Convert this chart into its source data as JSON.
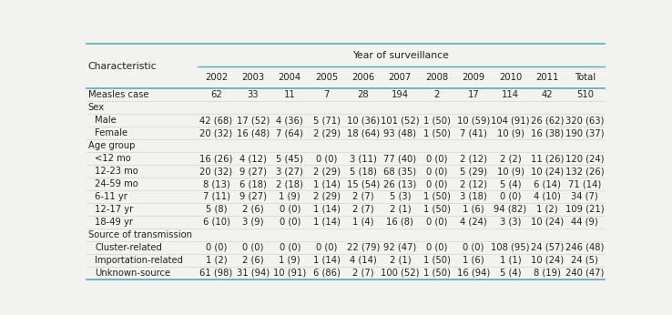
{
  "title": "Year of surveillance",
  "col_headers": [
    "Characteristic",
    "2002",
    "2003",
    "2004",
    "2005",
    "2006",
    "2007",
    "2008",
    "2009",
    "2010",
    "2011",
    "Total"
  ],
  "rows": [
    {
      "label": "Measles case",
      "indent": 0,
      "is_header": false,
      "values": [
        "62",
        "33",
        "11",
        "7",
        "28",
        "194",
        "2",
        "17",
        "114",
        "42",
        "510"
      ]
    },
    {
      "label": "Sex",
      "indent": 0,
      "is_header": true,
      "values": []
    },
    {
      "label": "Male",
      "indent": 1,
      "is_header": false,
      "values": [
        "42 (68)",
        "17 (52)",
        "4 (36)",
        "5 (71)",
        "10 (36)",
        "101 (52)",
        "1 (50)",
        "10 (59)",
        "104 (91)",
        "26 (62)",
        "320 (63)"
      ]
    },
    {
      "label": "Female",
      "indent": 1,
      "is_header": false,
      "values": [
        "20 (32)",
        "16 (48)",
        "7 (64)",
        "2 (29)",
        "18 (64)",
        "93 (48)",
        "1 (50)",
        "7 (41)",
        "10 (9)",
        "16 (38)",
        "190 (37)"
      ]
    },
    {
      "label": "Age group",
      "indent": 0,
      "is_header": true,
      "values": []
    },
    {
      "label": "<12 mo",
      "indent": 1,
      "is_header": false,
      "values": [
        "16 (26)",
        "4 (12)",
        "5 (45)",
        "0 (0)",
        "3 (11)",
        "77 (40)",
        "0 (0)",
        "2 (12)",
        "2 (2)",
        "11 (26)",
        "120 (24)"
      ]
    },
    {
      "label": "12-23 mo",
      "indent": 1,
      "is_header": false,
      "values": [
        "20 (32)",
        "9 (27)",
        "3 (27)",
        "2 (29)",
        "5 (18)",
        "68 (35)",
        "0 (0)",
        "5 (29)",
        "10 (9)",
        "10 (24)",
        "132 (26)"
      ]
    },
    {
      "label": "24-59 mo",
      "indent": 1,
      "is_header": false,
      "values": [
        "8 (13)",
        "6 (18)",
        "2 (18)",
        "1 (14)",
        "15 (54)",
        "26 (13)",
        "0 (0)",
        "2 (12)",
        "5 (4)",
        "6 (14)",
        "71 (14)"
      ]
    },
    {
      "label": "6-11 yr",
      "indent": 1,
      "is_header": false,
      "values": [
        "7 (11)",
        "9 (27)",
        "1 (9)",
        "2 (29)",
        "2 (7)",
        "5 (3)",
        "1 (50)",
        "3 (18)",
        "0 (0)",
        "4 (10)",
        "34 (7)"
      ]
    },
    {
      "label": "12-17 yr",
      "indent": 1,
      "is_header": false,
      "values": [
        "5 (8)",
        "2 (6)",
        "0 (0)",
        "1 (14)",
        "2 (7)",
        "2 (1)",
        "1 (50)",
        "1 (6)",
        "94 (82)",
        "1 (2)",
        "109 (21)"
      ]
    },
    {
      "label": "18-49 yr",
      "indent": 1,
      "is_header": false,
      "values": [
        "6 (10)",
        "3 (9)",
        "0 (0)",
        "1 (14)",
        "1 (4)",
        "16 (8)",
        "0 (0)",
        "4 (24)",
        "3 (3)",
        "10 (24)",
        "44 (9)"
      ]
    },
    {
      "label": "Source of transmission",
      "indent": 0,
      "is_header": true,
      "values": []
    },
    {
      "label": "Cluster-related",
      "indent": 1,
      "is_header": false,
      "values": [
        "0 (0)",
        "0 (0)",
        "0 (0)",
        "0 (0)",
        "22 (79)",
        "92 (47)",
        "0 (0)",
        "0 (0)",
        "108 (95)",
        "24 (57)",
        "246 (48)"
      ]
    },
    {
      "label": "Importation-related",
      "indent": 1,
      "is_header": false,
      "values": [
        "1 (2)",
        "2 (6)",
        "1 (9)",
        "1 (14)",
        "4 (14)",
        "2 (1)",
        "1 (50)",
        "1 (6)",
        "1 (1)",
        "10 (24)",
        "24 (5)"
      ]
    },
    {
      "label": "Unknown-source",
      "indent": 1,
      "is_header": false,
      "values": [
        "61 (98)",
        "31 (94)",
        "10 (91)",
        "6 (86)",
        "2 (7)",
        "100 (52)",
        "1 (50)",
        "16 (94)",
        "5 (4)",
        "8 (19)",
        "240 (47)"
      ]
    }
  ],
  "bg_color": "#f2f2ee",
  "header_line_color": "#5ba8bc",
  "row_line_color": "#cccccc",
  "text_color": "#222222",
  "font_size": 7.2,
  "header_font_size": 7.8
}
